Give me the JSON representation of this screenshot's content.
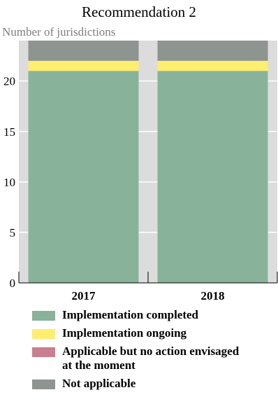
{
  "chart_data": {
    "type": "bar",
    "stacked": true,
    "title": "Recommendation 2",
    "ylabel": "Number of jurisdictions",
    "xlabel": "",
    "categories": [
      "2017",
      "2018"
    ],
    "ylim": [
      0,
      24
    ],
    "yticks": [
      0,
      5,
      10,
      15,
      20
    ],
    "grid": true,
    "legend_position": "bottom",
    "series": [
      {
        "name": "Implementation completed",
        "color": "#88b39a",
        "values": [
          21,
          21
        ]
      },
      {
        "name": "Implementation ongoing",
        "color": "#fdee6e",
        "values": [
          1,
          1
        ]
      },
      {
        "name": "Applicable but no action envisaged\nat the moment",
        "color": "#c97f8f",
        "values": [
          0,
          0
        ]
      },
      {
        "name": "Not applicable",
        "color": "#8e9490",
        "values": [
          2,
          2
        ]
      }
    ],
    "background_color": "#dcdcdc"
  }
}
